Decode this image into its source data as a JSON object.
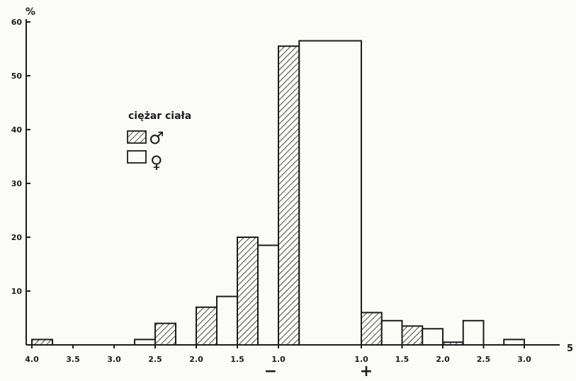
{
  "chart_data": {
    "type": "bar",
    "title": "",
    "ylabel": "%",
    "xlabel": "",
    "ylim": [
      0,
      60
    ],
    "y_ticks": [
      10,
      20,
      30,
      40,
      50,
      60
    ],
    "y_tick_labels": [
      "10",
      "20",
      "30",
      "40",
      "50",
      "60"
    ],
    "x_tick_labels": [
      "4.0",
      "3.5",
      "3.0",
      "2.5",
      "2.0",
      "1.5",
      "1.0",
      "1.0",
      "1.5",
      "2.0",
      "2.5",
      "3.0"
    ],
    "x_axis_end_label": "5",
    "sign_labels": {
      "minus": "−",
      "plus": "+"
    },
    "legend": {
      "title": "ciężar ciała",
      "placement": "upper-left",
      "entries": [
        {
          "symbol": "♂",
          "style": "hatched"
        },
        {
          "symbol": "♀",
          "style": "open"
        }
      ]
    },
    "series": [
      {
        "style": "hatched",
        "symbol": "♂",
        "bins": [
          {
            "from": -4.0,
            "to": -3.75,
            "value": 1
          },
          {
            "from": -2.5,
            "to": -2.25,
            "value": 4
          },
          {
            "from": -2.0,
            "to": -1.75,
            "value": 7
          },
          {
            "from": -1.5,
            "to": -1.25,
            "value": 20
          },
          {
            "from": -1.0,
            "to": -0.5,
            "value": 55.5
          },
          {
            "from": 1.0,
            "to": 1.25,
            "value": 6
          },
          {
            "from": 1.5,
            "to": 1.75,
            "value": 3.5
          },
          {
            "from": 2.0,
            "to": 2.25,
            "value": 0.5
          }
        ]
      },
      {
        "style": "open",
        "symbol": "♀",
        "bins": [
          {
            "from": -2.75,
            "to": -2.5,
            "value": 1
          },
          {
            "from": -1.75,
            "to": -1.5,
            "value": 9
          },
          {
            "from": -1.25,
            "to": -1.0,
            "value": 18.5
          },
          {
            "from": -0.5,
            "to": 1.0,
            "value": 56.5
          },
          {
            "from": 1.25,
            "to": 1.5,
            "value": 4.5
          },
          {
            "from": 1.75,
            "to": 2.0,
            "value": 3
          },
          {
            "from": 2.25,
            "to": 2.5,
            "value": 4.5
          },
          {
            "from": 2.75,
            "to": 3.0,
            "value": 1
          }
        ]
      }
    ]
  }
}
